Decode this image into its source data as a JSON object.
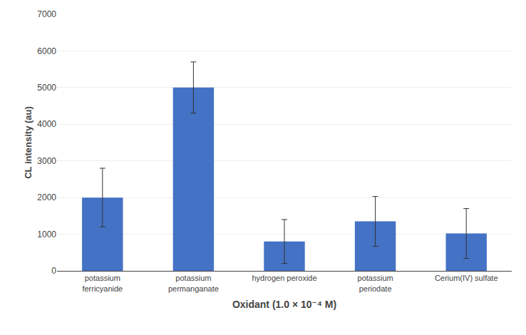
{
  "chart_data": {
    "type": "bar",
    "categories": [
      "potassium\nferricyanide",
      "potassium\npermanganate",
      "hydrogen peroxide",
      "potassium\nperiodate",
      "Cerium(IV) sulfate"
    ],
    "values": [
      2000,
      5000,
      800,
      1350,
      1020
    ],
    "errors": [
      800,
      700,
      600,
      680,
      680
    ],
    "color": "#4472C4",
    "xlabel": "Oxidant (1.0 × 10⁻⁴ M)",
    "ylabel": "CL intensity (au)",
    "ylim": [
      0,
      7000
    ],
    "yticks": [
      0,
      1000,
      2000,
      3000,
      4000,
      5000,
      6000,
      7000
    ],
    "grid": true
  }
}
